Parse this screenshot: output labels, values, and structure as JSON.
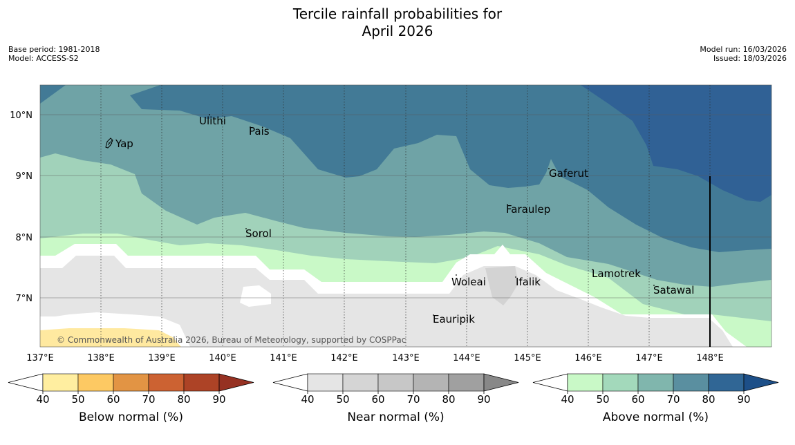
{
  "title_line1": "Tercile rainfall probabilities for",
  "title_line2": "April 2026",
  "base_period": "Base period: 1981-2018",
  "model": "Model: ACCESS-S2",
  "model_run": "Model run: 16/03/2026",
  "issued": "Issued: 18/03/2026",
  "copyright": "© Commonwealth of Australia 2026, Bureau of Meteorology, supported by COSPPac",
  "lon_ticks": [
    "137°E",
    "138°E",
    "139°E",
    "140°E",
    "141°E",
    "142°E",
    "143°E",
    "144°E",
    "145°E",
    "146°E",
    "147°E",
    "148°E"
  ],
  "lat_ticks": [
    "10°N",
    "9°N",
    "8°N",
    "7°N"
  ],
  "places": [
    "Ulithi",
    "Pais",
    "Yap",
    "Gaferut",
    "Faraulep",
    "Sorol",
    "Lamotrek",
    "Woleai",
    "Ifalik",
    "Satawal",
    "Eauripik"
  ],
  "legend": {
    "below": {
      "title": "Below normal (%)",
      "ticks": [
        "40",
        "50",
        "60",
        "70",
        "80",
        "90"
      ],
      "colors": [
        "#ffeea0",
        "#fdc963",
        "#e29444",
        "#cc6232",
        "#ad4326"
      ],
      "arrow": "#963122"
    },
    "near": {
      "title": "Near normal (%)",
      "ticks": [
        "40",
        "50",
        "60",
        "70",
        "80",
        "90"
      ],
      "colors": [
        "#e5e5e5",
        "#d5d5d5",
        "#c7c7c7",
        "#b4b4b4",
        "#a0a0a0"
      ],
      "arrow": "#888888"
    },
    "above": {
      "title": "Above normal (%)",
      "ticks": [
        "40",
        "50",
        "60",
        "70",
        "80",
        "90"
      ],
      "colors": [
        "#c9f9c7",
        "#a3d9bb",
        "#80b6ad",
        "#5a8fa0",
        "#306695"
      ],
      "arrow": "#1d4f88"
    }
  },
  "colors": {
    "above_40": "#c9f9c7",
    "above_50": "#a1d2ba",
    "above_60": "#6fa3a6",
    "above_70": "#427a96",
    "above_80": "#306195",
    "near_40": "#e5e5e5",
    "below_40": "#ffe9a0"
  }
}
